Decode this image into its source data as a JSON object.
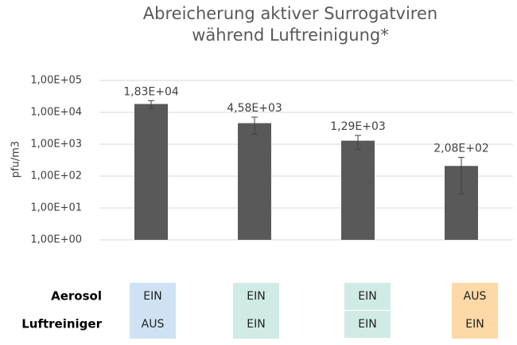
{
  "chart_data": {
    "type": "bar",
    "title": "Abreicherung aktiver Surrogatviren während Luftreinigung*",
    "y_label": "pfu/m3",
    "log_scale": true,
    "grid": true,
    "color": "#595959",
    "values": [
      18300,
      4580,
      1290,
      208
    ],
    "value_labels": [
      "1,83E+04",
      "4,58E+03",
      "1,29E+03",
      "2,08E+02"
    ],
    "errors": [
      5000,
      2500,
      600,
      180
    ],
    "ylim": [
      1,
      100000
    ],
    "yticks": [
      {
        "value": 1,
        "label": "1,00E+00"
      },
      {
        "value": 10,
        "label": "1,00E+01"
      },
      {
        "value": 100,
        "label": "1,00E+02"
      },
      {
        "value": 1000,
        "label": "1,00E+03"
      },
      {
        "value": 10000,
        "label": "1,00E+04"
      },
      {
        "value": 100000,
        "label": "1,00E+05"
      }
    ]
  },
  "table": {
    "row_labels": [
      "Aerosol",
      "Luftreiniger"
    ],
    "columns": [
      {
        "color": "#cfe2f3",
        "cells": [
          "EIN",
          "AUS"
        ]
      },
      {
        "color": "#d0ebe5",
        "cells": [
          "EIN",
          "EIN"
        ]
      },
      {
        "color": "#d0ebe5",
        "cells": [
          "EIN",
          "EIN"
        ]
      },
      {
        "color": "#fcd9a6",
        "cells": [
          "AUS",
          "EIN"
        ]
      }
    ]
  }
}
